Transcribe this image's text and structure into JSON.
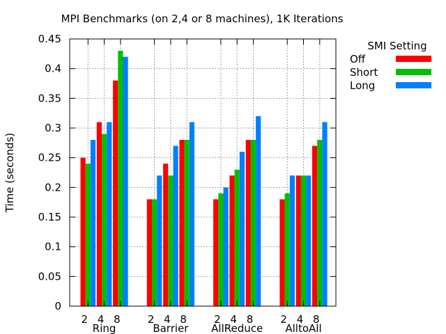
{
  "chart_data": {
    "type": "bar",
    "title": "MPI Benchmarks (on 2,4 or 8 machines), 1K Iterations",
    "ylabel": "Time (seconds)",
    "xlabel": "",
    "ylim": [
      0,
      0.45
    ],
    "yticks": [
      "0",
      "0.05",
      "0.1",
      "0.15",
      "0.2",
      "0.25",
      "0.3",
      "0.35",
      "0.4",
      "0.45"
    ],
    "grid": true,
    "legend_title": "SMI Setting",
    "legend_position": "top-right-outside",
    "series": [
      {
        "name": "Off",
        "color": "#ff0000"
      },
      {
        "name": "Short",
        "color": "#00c000"
      },
      {
        "name": "Long",
        "color": "#0080ff"
      }
    ],
    "groups": [
      {
        "name": "Ring",
        "machines": [
          {
            "label": "2",
            "values": [
              0.25,
              0.24,
              0.28
            ]
          },
          {
            "label": "4",
            "values": [
              0.31,
              0.29,
              0.31
            ]
          },
          {
            "label": "8",
            "values": [
              0.38,
              0.43,
              0.42
            ]
          }
        ]
      },
      {
        "name": "Barrier",
        "machines": [
          {
            "label": "2",
            "values": [
              0.18,
              0.18,
              0.22
            ]
          },
          {
            "label": "4",
            "values": [
              0.24,
              0.22,
              0.27
            ]
          },
          {
            "label": "8",
            "values": [
              0.28,
              0.28,
              0.31
            ]
          }
        ]
      },
      {
        "name": "AllReduce",
        "machines": [
          {
            "label": "2",
            "values": [
              0.18,
              0.19,
              0.2
            ]
          },
          {
            "label": "4",
            "values": [
              0.22,
              0.23,
              0.26
            ]
          },
          {
            "label": "8",
            "values": [
              0.28,
              0.28,
              0.32
            ]
          }
        ]
      },
      {
        "name": "AlltoAll",
        "machines": [
          {
            "label": "2",
            "values": [
              0.18,
              0.19,
              0.22
            ]
          },
          {
            "label": "4",
            "values": [
              0.22,
              0.22,
              0.22
            ]
          },
          {
            "label": "8",
            "values": [
              0.27,
              0.28,
              0.31
            ]
          }
        ]
      }
    ]
  }
}
